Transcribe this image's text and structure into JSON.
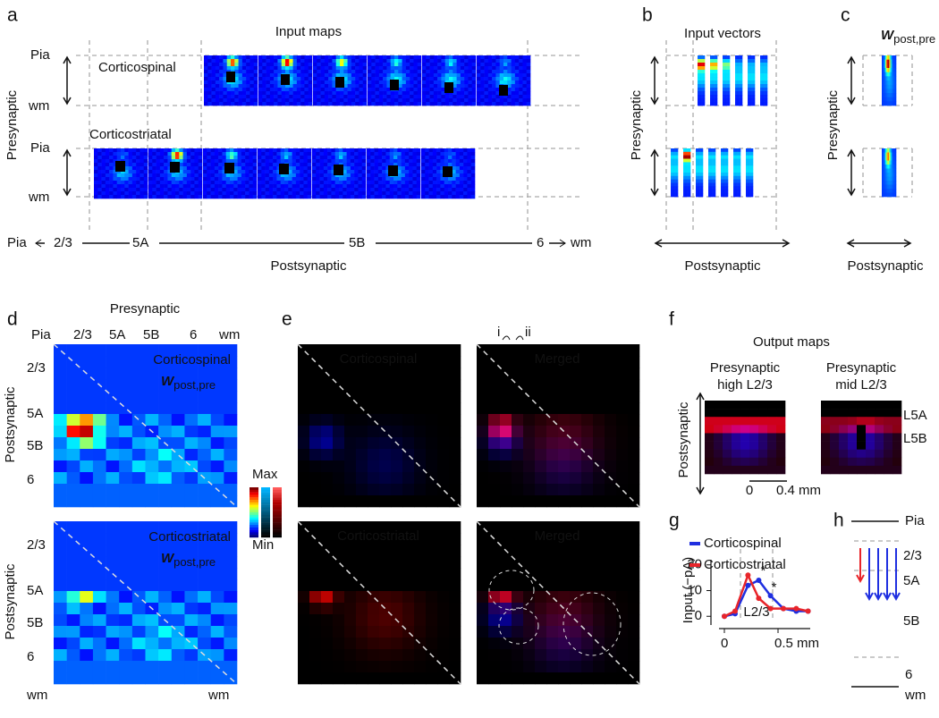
{
  "panel_a": {
    "label": "a",
    "title": "Input maps",
    "y_label": "Presynaptic",
    "rows": [
      {
        "name": "Corticospinal",
        "top": "Pia",
        "bottom": "wm"
      },
      {
        "name": "Corticostriatal",
        "top": "Pia",
        "bottom": "wm"
      }
    ],
    "x_axis": {
      "left": "Pia",
      "layers": [
        "2/3",
        "5A",
        "5B",
        "6"
      ],
      "right": "wm"
    },
    "x_label": "Postsynaptic"
  },
  "panel_b": {
    "label": "b",
    "title": "Input vectors",
    "y_label": "Presynaptic",
    "x_label": "Postsynaptic"
  },
  "panel_c": {
    "label": "c",
    "w": "W",
    "w_sub": "post,pre",
    "y_label": "Presynaptic",
    "x_label": "Postsynaptic"
  },
  "panel_d": {
    "label": "d",
    "x_label": "Presynaptic",
    "top_labels": [
      "Pia",
      "2/3",
      "5A",
      "5B",
      "6",
      "wm"
    ],
    "maps": [
      {
        "name": "Corticospinal",
        "w": "W",
        "w_sub": "post,pre",
        "y_label": "Postsynaptic",
        "rows": [
          "2/3",
          "5A",
          "5B",
          "6"
        ]
      },
      {
        "name": "Corticostriatal",
        "w": "W",
        "w_sub": "post,pre",
        "y_label": "Postsynaptic",
        "rows": [
          "2/3",
          "5A",
          "5B",
          "6"
        ]
      }
    ],
    "bottom_labels": [
      "wm",
      "wm"
    ],
    "colorbar": {
      "max": "Max",
      "min": "Min"
    }
  },
  "panel_e": {
    "label": "e",
    "markers": [
      "i",
      "ii"
    ],
    "maps": [
      "Corticospinal",
      "Merged",
      "Corticostriatal",
      "Merged"
    ]
  },
  "panel_f": {
    "label": "f",
    "title": "Output maps",
    "y_label": "Postsynaptic",
    "maps": [
      [
        "Presynaptic",
        "high L2/3"
      ],
      [
        "Presynaptic",
        "mid L2/3"
      ]
    ],
    "layers": [
      "L5A",
      "L5B"
    ],
    "scale": [
      "0",
      "0.4 mm"
    ]
  },
  "panel_g": {
    "label": "g",
    "type": "line",
    "y_label": "Input (−pA)",
    "annotation": "L2/3",
    "stars": [
      "*",
      "*"
    ],
    "xlim": [
      -0.05,
      0.8
    ],
    "ylim": [
      -2,
      22
    ],
    "xticks": [
      0,
      {
        "value": 0.5,
        "label": "0.5 mm"
      }
    ],
    "yticks": [
      0,
      10,
      20
    ],
    "x": [
      0,
      0.1,
      0.22,
      0.32,
      0.43,
      0.55,
      0.67,
      0.78
    ],
    "series": [
      {
        "name": "Corticospinal",
        "color": "#1f2fe0",
        "values": [
          0,
          1,
          12,
          14,
          8,
          3,
          2,
          2
        ]
      },
      {
        "name": "Corticostriatal",
        "color": "#e8252a",
        "values": [
          0,
          2,
          16,
          7,
          3,
          3,
          3,
          2
        ]
      }
    ]
  },
  "panel_h": {
    "label": "h",
    "layers": [
      "Pia",
      "2/3",
      "5A",
      "5B",
      "6",
      "wm"
    ]
  }
}
